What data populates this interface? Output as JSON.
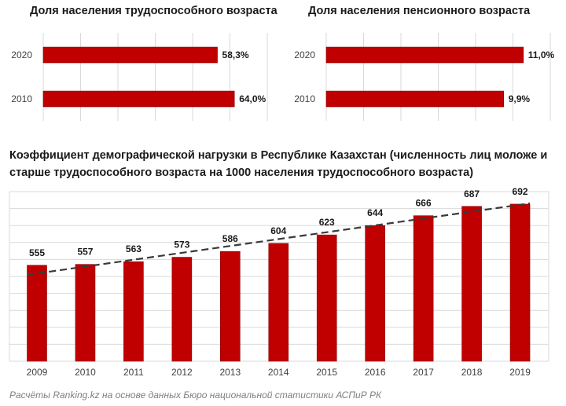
{
  "chart_data": [
    {
      "type": "bar",
      "orientation": "horizontal",
      "title": "Доля населения трудоспособного возраста",
      "categories": [
        "2020",
        "2010"
      ],
      "values": [
        58.3,
        64.0
      ],
      "value_labels": [
        "58,3%",
        "64,0%"
      ],
      "unit": "%",
      "xlim": [
        0,
        75
      ],
      "grid": true,
      "color": "#c00000"
    },
    {
      "type": "bar",
      "orientation": "horizontal",
      "title": "Доля населения пенсионного возраста",
      "categories": [
        "2020",
        "2010"
      ],
      "values": [
        11.0,
        9.9
      ],
      "value_labels": [
        "11,0%",
        "9,9%"
      ],
      "unit": "%",
      "xlim": [
        0,
        12.5
      ],
      "grid": true,
      "color": "#c00000"
    },
    {
      "type": "bar",
      "title": "Коэффициент демографической нагрузки в Республике Казахстан (численность лиц моложе и старше трудоспособного возраста на 1000 населения трудоспособного возраста)",
      "categories": [
        "2009",
        "2010",
        "2011",
        "2012",
        "2013",
        "2014",
        "2015",
        "2016",
        "2017",
        "2018",
        "2019"
      ],
      "values": [
        555,
        557,
        563,
        573,
        586,
        604,
        623,
        644,
        666,
        687,
        692
      ],
      "value_labels": [
        "555",
        "557",
        "563",
        "573",
        "586",
        "604",
        "623",
        "644",
        "666",
        "687",
        "692"
      ],
      "trendline": "linear, dashed",
      "ylim": [
        340,
        720
      ],
      "grid": true,
      "color": "#c00000"
    }
  ],
  "source": "Расчёты Ranking.kz на основе данных Бюро национальной статистики АСПиР РК"
}
